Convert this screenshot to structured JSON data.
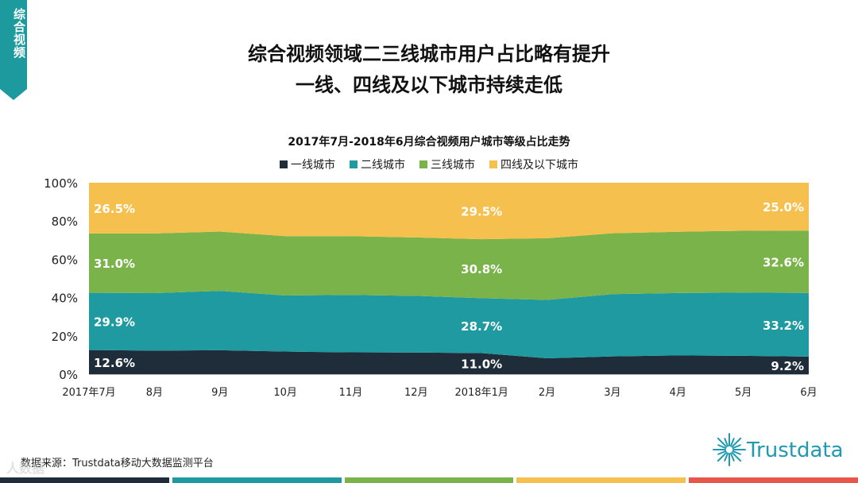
{
  "side_tab": {
    "label": "综合视频",
    "color": "#1d9a9e"
  },
  "headline": {
    "line1": "综合视频领域二三线城市用户占比略有提升",
    "line2": "一线、四线及以下城市持续走低"
  },
  "source": "数据来源：Trustdata移动大数据监测平台",
  "logo": {
    "text": "Trustdata",
    "icon": "sunburst-icon",
    "color": "#1f9ab0"
  },
  "watermark": "人数据",
  "bottom_bar_colors": [
    "#1f2d3a",
    "#1e9aa0",
    "#7ab34a",
    "#f6c04e",
    "#e8564a"
  ],
  "chart_data": {
    "type": "area",
    "stacked": true,
    "title": "2017年7月-2018年6月综合视频用户城市等级占比走势",
    "categories": [
      "2017年7月",
      "8月",
      "9月",
      "10月",
      "11月",
      "12月",
      "2018年1月",
      "2月",
      "3月",
      "4月",
      "5月",
      "6月"
    ],
    "ylim": [
      0,
      100
    ],
    "yticks": [
      "0%",
      "20%",
      "40%",
      "60%",
      "80%",
      "100%"
    ],
    "legend_position": "top-center",
    "series": [
      {
        "name": "一线城市",
        "color": "#1f2d3a",
        "values": [
          12.6,
          12.3,
          12.5,
          11.8,
          11.4,
          11.3,
          11.0,
          8.3,
          9.3,
          9.8,
          9.6,
          9.2
        ]
      },
      {
        "name": "二线城市",
        "color": "#1e9aa0",
        "values": [
          29.9,
          30.0,
          31.0,
          29.3,
          30.0,
          29.6,
          28.7,
          30.5,
          32.5,
          32.6,
          33.0,
          33.2
        ]
      },
      {
        "name": "三线城市",
        "color": "#7ab34a",
        "values": [
          31.0,
          31.2,
          31.0,
          31.0,
          30.7,
          30.5,
          30.8,
          32.2,
          31.8,
          32.0,
          32.3,
          32.6
        ]
      },
      {
        "name": "四线及以下城市",
        "color": "#f6c04e",
        "values": [
          26.5,
          26.5,
          25.5,
          27.9,
          27.9,
          28.6,
          29.5,
          29.0,
          26.4,
          25.6,
          25.1,
          25.0
        ]
      }
    ],
    "data_labels": [
      {
        "series": 0,
        "index": 0,
        "text": "12.6%"
      },
      {
        "series": 1,
        "index": 0,
        "text": "29.9%"
      },
      {
        "series": 2,
        "index": 0,
        "text": "31.0%"
      },
      {
        "series": 3,
        "index": 0,
        "text": "26.5%"
      },
      {
        "series": 0,
        "index": 6,
        "text": "11.0%"
      },
      {
        "series": 1,
        "index": 6,
        "text": "28.7%"
      },
      {
        "series": 2,
        "index": 6,
        "text": "30.8%"
      },
      {
        "series": 3,
        "index": 6,
        "text": "29.5%"
      },
      {
        "series": 0,
        "index": 11,
        "text": "9.2%"
      },
      {
        "series": 1,
        "index": 11,
        "text": "33.2%"
      },
      {
        "series": 2,
        "index": 11,
        "text": "32.6%"
      },
      {
        "series": 3,
        "index": 11,
        "text": "25.0%"
      }
    ]
  }
}
